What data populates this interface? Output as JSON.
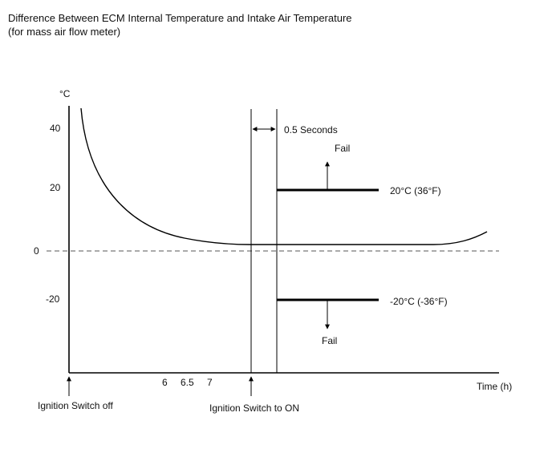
{
  "title": {
    "line1": "Difference Between ECM Internal Temperature and Intake Air Temperature",
    "line2": "(for mass air flow meter)"
  },
  "y_axis": {
    "unit": "°C",
    "ticks": [
      "40",
      "20",
      "0",
      "-20"
    ]
  },
  "x_axis": {
    "label": "Time (h)",
    "ticks": [
      "6",
      "6.5",
      "7"
    ]
  },
  "events": {
    "ignition_off": "Ignition Switch off",
    "ignition_on": "Ignition Switch to ON",
    "delay": "0.5 Seconds"
  },
  "thresholds": {
    "upper": {
      "label": "20°C (36°F)",
      "fail": "Fail",
      "value": 20
    },
    "lower": {
      "label": "-20°C (-36°F)",
      "fail": "Fail",
      "value": -20
    }
  }
}
